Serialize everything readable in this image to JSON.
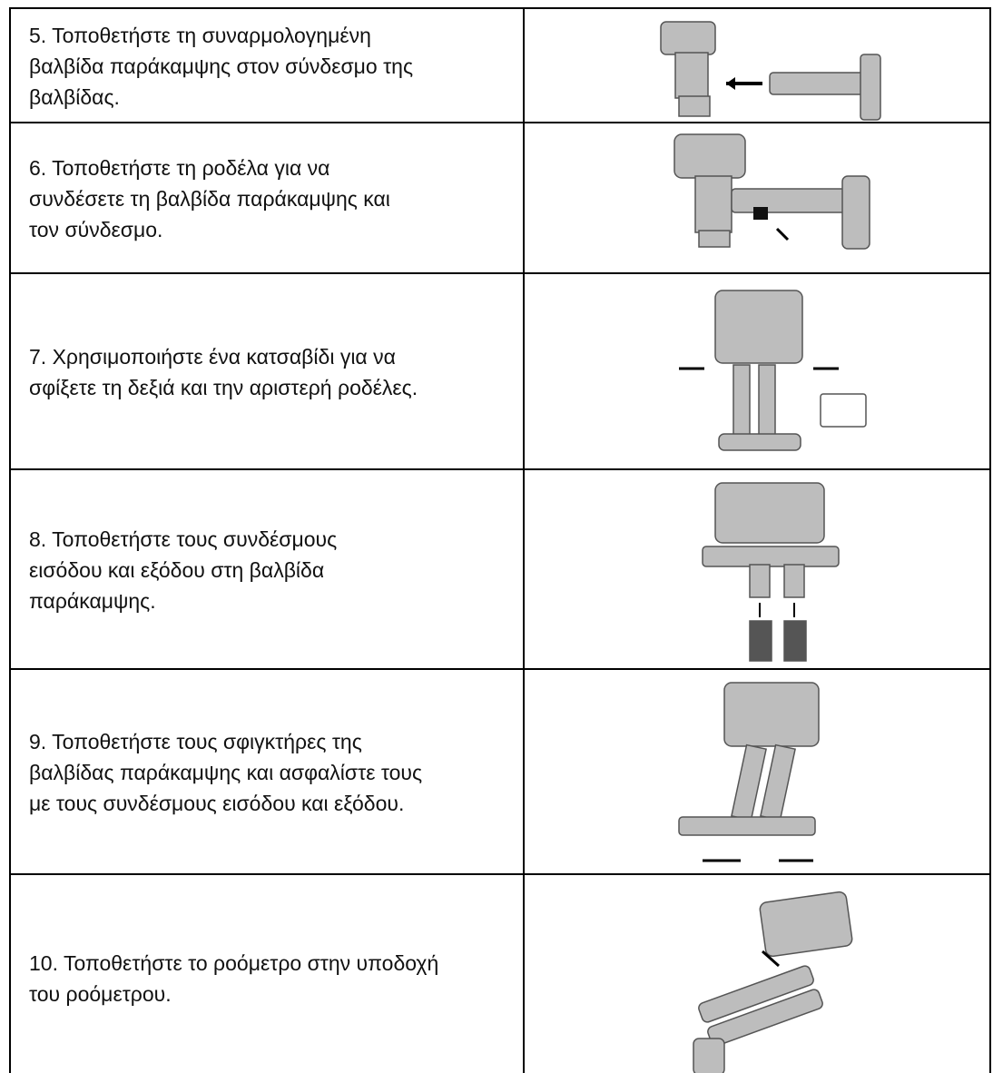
{
  "table": {
    "rows": [
      {
        "lines": [
          "5. Τοποθετήστε τη συναρμολογημένη",
          "βαλβίδα παράκαμψης στον σύνδεσμο της",
          "βαλβίδας."
        ]
      },
      {
        "lines": [
          "6. Τοποθετήστε τη ροδέλα για να",
          "συνδέσετε τη βαλβίδα παράκαμψης και",
          "τον σύνδεσμο."
        ]
      },
      {
        "lines": [
          "7. Χρησιμοποιήστε ένα κατσαβίδι για να",
          "σφίξετε τη δεξιά και την αριστερή ροδέλες."
        ]
      },
      {
        "lines": [
          "8. Τοποθετήστε τους συνδέσμους",
          "εισόδου και εξόδου στη βαλβίδα",
          "παράκαμψης."
        ]
      },
      {
        "lines": [
          "9. Τοποθετήστε τους σφιγκτήρες της",
          "βαλβίδας παράκαμψης και ασφαλίστε τους",
          "με τους συνδέσμους εισόδου και εξόδου."
        ]
      },
      {
        "lines": [
          "10. Τοποθετήστε το ροόμετρο στην υποδοχή",
          "του ροόμετρου."
        ]
      }
    ]
  }
}
